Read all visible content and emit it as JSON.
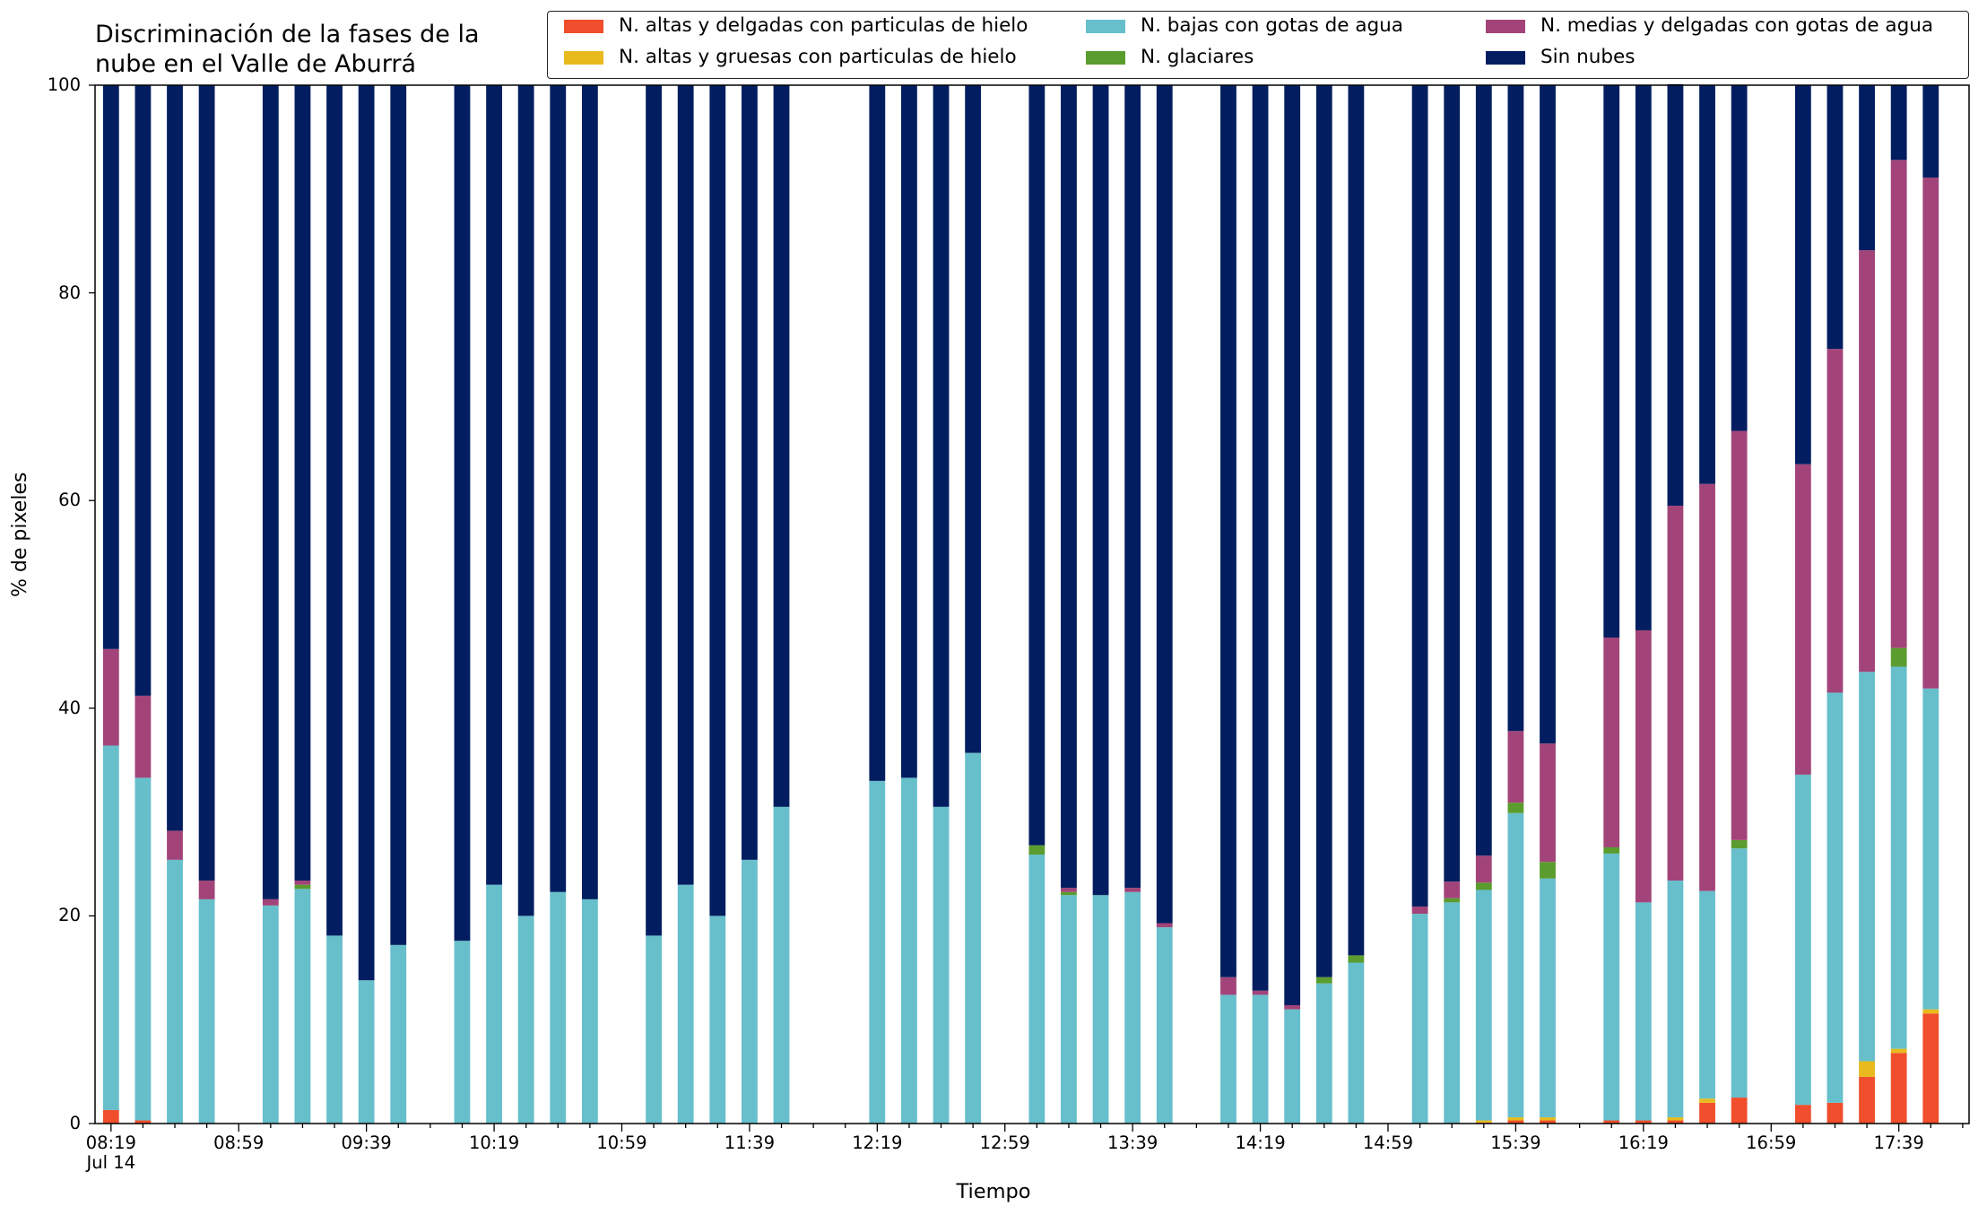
{
  "chart_data": {
    "type": "bar",
    "stacked": true,
    "title": "Discriminación de la fases de la\nnube en el Valle de Aburrá",
    "xlabel": "Tiempo",
    "ylabel": "% de pixeles",
    "ylim": [
      0,
      100
    ],
    "yticks": [
      "0",
      "20",
      "40",
      "60",
      "80",
      "100"
    ],
    "xticks": [
      {
        "label": "08:19\nJul 14",
        "time": "08:19"
      },
      {
        "label": "08:59",
        "time": "08:59"
      },
      {
        "label": "09:39",
        "time": "09:39"
      },
      {
        "label": "10:19",
        "time": "10:19"
      },
      {
        "label": "10:59",
        "time": "10:59"
      },
      {
        "label": "11:39",
        "time": "11:39"
      },
      {
        "label": "12:19",
        "time": "12:19"
      },
      {
        "label": "12:59",
        "time": "12:59"
      },
      {
        "label": "13:39",
        "time": "13:39"
      },
      {
        "label": "14:19",
        "time": "14:19"
      },
      {
        "label": "14:59",
        "time": "14:59"
      },
      {
        "label": "15:39",
        "time": "15:39"
      },
      {
        "label": "16:19",
        "time": "16:19"
      },
      {
        "label": "16:59",
        "time": "16:59"
      },
      {
        "label": "17:39",
        "time": "17:39"
      }
    ],
    "legend_position": "top-right",
    "grid": false,
    "categories": [
      "08:19",
      "08:29",
      "08:39",
      "08:49",
      "09:09",
      "09:19",
      "09:29",
      "09:39",
      "09:49",
      "10:09",
      "10:19",
      "10:29",
      "10:39",
      "10:49",
      "11:09",
      "11:19",
      "11:29",
      "11:39",
      "11:49",
      "12:19",
      "12:29",
      "12:39",
      "12:49",
      "13:09",
      "13:19",
      "13:29",
      "13:39",
      "13:49",
      "14:09",
      "14:19",
      "14:29",
      "14:39",
      "14:49",
      "15:09",
      "15:19",
      "15:29",
      "15:39",
      "15:49",
      "16:09",
      "16:19",
      "16:29",
      "16:39",
      "16:49",
      "17:09",
      "17:19",
      "17:29",
      "17:39",
      "17:49"
    ],
    "series": [
      {
        "name": "N. altas y delgadas con particulas de hielo",
        "color": "#F04E2C",
        "values": [
          1.3,
          0.3,
          0,
          0,
          0,
          0,
          0,
          0,
          0,
          0,
          0,
          0,
          0,
          0,
          0,
          0,
          0,
          0,
          0,
          0,
          0,
          0,
          0,
          0,
          0,
          0,
          0,
          0,
          0,
          0,
          0,
          0,
          0,
          0,
          0,
          0.1,
          0.3,
          0.3,
          0.3,
          0.3,
          0.3,
          2.0,
          2.5,
          1.8,
          2.0,
          4.5,
          6.8,
          10.6
        ]
      },
      {
        "name": "N. altas y gruesas con particulas de hielo",
        "color": "#E8BA1D",
        "values": [
          0,
          0,
          0,
          0,
          0,
          0,
          0,
          0,
          0,
          0,
          0,
          0,
          0,
          0,
          0,
          0,
          0,
          0,
          0,
          0,
          0,
          0,
          0,
          0,
          0,
          0,
          0,
          0,
          0,
          0,
          0,
          0,
          0,
          0,
          0,
          0.2,
          0.3,
          0.3,
          0,
          0,
          0.3,
          0.4,
          0,
          0,
          0,
          1.5,
          0.4,
          0.4
        ]
      },
      {
        "name": "N. bajas con gotas de agua",
        "color": "#66BFCB",
        "values": [
          35.1,
          33.0,
          25.4,
          21.6,
          21.0,
          22.6,
          18.1,
          13.8,
          17.2,
          17.6,
          23.0,
          20.0,
          22.3,
          21.6,
          18.1,
          23.0,
          20.0,
          25.4,
          30.5,
          33.0,
          33.3,
          30.5,
          35.7,
          25.9,
          22.0,
          22.0,
          22.3,
          18.9,
          12.4,
          12.4,
          11.0,
          13.5,
          15.5,
          20.2,
          21.3,
          22.2,
          29.3,
          23.0,
          25.7,
          21.0,
          22.8,
          20.0,
          24.0,
          31.8,
          39.5,
          37.5,
          36.8,
          30.9
        ]
      },
      {
        "name": "N. glaciares",
        "color": "#5A9C2E",
        "values": [
          0,
          0,
          0,
          0,
          0,
          0.4,
          0,
          0,
          0,
          0,
          0,
          0,
          0,
          0,
          0,
          0,
          0,
          0,
          0,
          0,
          0,
          0,
          0,
          0.9,
          0.3,
          0,
          0,
          0,
          0,
          0,
          0,
          0.6,
          0.7,
          0,
          0.4,
          0.7,
          1.0,
          1.6,
          0.6,
          0,
          0,
          0,
          0.8,
          0,
          0,
          0,
          1.8,
          0
        ]
      },
      {
        "name": "N. medias y delgadas con gotas de agua",
        "color": "#A24479",
        "values": [
          9.3,
          7.9,
          2.8,
          1.8,
          0.6,
          0.4,
          0,
          0,
          0,
          0,
          0,
          0,
          0,
          0,
          0,
          0,
          0,
          0,
          0,
          0,
          0,
          0,
          0,
          0,
          0.4,
          0,
          0.4,
          0.4,
          1.7,
          0.4,
          0.4,
          0,
          0,
          0.7,
          1.6,
          2.6,
          6.9,
          11.4,
          20.2,
          26.2,
          36.1,
          39.2,
          39.4,
          29.9,
          33.1,
          40.6,
          47.0,
          49.2
        ]
      },
      {
        "name": "Sin nubes",
        "color": "#021E60",
        "values": [
          54.3,
          58.8,
          71.8,
          76.6,
          78.4,
          76.6,
          81.9,
          86.2,
          82.8,
          82.4,
          77.0,
          80.0,
          77.7,
          78.4,
          81.9,
          77.0,
          80.0,
          74.6,
          69.5,
          67.0,
          66.7,
          69.5,
          64.3,
          73.2,
          77.3,
          78.0,
          77.3,
          80.7,
          85.9,
          87.2,
          88.6,
          85.9,
          83.8,
          79.1,
          76.7,
          74.2,
          62.2,
          63.4,
          53.2,
          52.5,
          40.6,
          38.4,
          33.3,
          36.5,
          25.4,
          15.9,
          7.2,
          8.9
        ]
      }
    ]
  }
}
